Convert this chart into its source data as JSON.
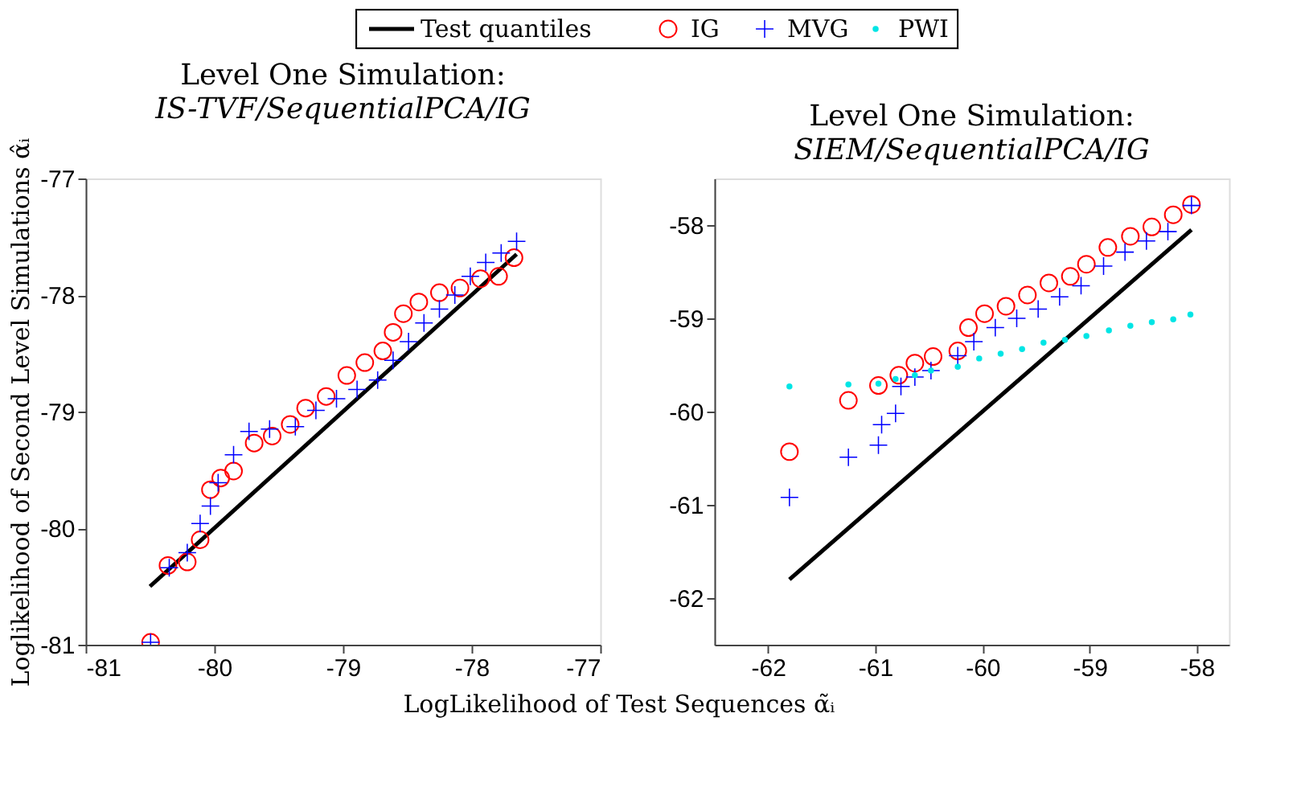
{
  "chart_data": [
    {
      "type": "scatter",
      "title": "Level One Simulation:",
      "subtitle": "IS-TVF/SequentialPCA/IG",
      "xlabel": "LogLikelihood of Test Sequences α̃ᵢ",
      "ylabel": "Loglikelihood of Second Level Simulations α̂ᵢ",
      "xlim": [
        -81,
        -77
      ],
      "ylim": [
        -81,
        -77
      ],
      "xticks": [
        -81,
        -80,
        -79,
        -78,
        -77
      ],
      "yticks": [
        -81,
        -80,
        -79,
        -78,
        -77
      ],
      "grid": false,
      "legend": "top",
      "series": [
        {
          "name": "Test quantiles",
          "type": "line",
          "color": "#000000",
          "x": [
            -80.5,
            -77.65
          ],
          "values": [
            -80.5,
            -77.65
          ]
        },
        {
          "name": "IG",
          "marker": "circle",
          "color": "#ff0000",
          "x": [
            -80.495,
            -80.36,
            -80.21,
            -80.11,
            -80.03,
            -79.95,
            -79.85,
            -79.69,
            -79.55,
            -79.41,
            -79.29,
            -79.13,
            -78.97,
            -78.83,
            -78.69,
            -78.61,
            -78.53,
            -78.41,
            -78.25,
            -78.09,
            -77.93,
            -77.79,
            -77.67
          ],
          "values": [
            -80.98,
            -80.32,
            -80.29,
            -80.1,
            -79.67,
            -79.57,
            -79.51,
            -79.27,
            -79.21,
            -79.11,
            -78.97,
            -78.87,
            -78.69,
            -78.58,
            -78.48,
            -78.32,
            -78.16,
            -78.06,
            -77.98,
            -77.94,
            -77.86,
            -77.84,
            -77.68
          ]
        },
        {
          "name": "MVG",
          "marker": "cross",
          "color": "#0000ff",
          "x": [
            -80.495,
            -80.35,
            -80.21,
            -80.11,
            -80.03,
            -79.97,
            -79.85,
            -79.73,
            -79.57,
            -79.37,
            -79.21,
            -79.05,
            -78.89,
            -78.73,
            -78.61,
            -78.49,
            -78.37,
            -78.25,
            -78.13,
            -78.01,
            -77.89,
            -77.77,
            -77.65
          ],
          "values": [
            -80.98,
            -80.34,
            -80.21,
            -79.96,
            -79.81,
            -79.61,
            -79.37,
            -79.17,
            -79.15,
            -79.13,
            -78.99,
            -78.89,
            -78.81,
            -78.73,
            -78.56,
            -78.4,
            -78.24,
            -78.12,
            -78.0,
            -77.84,
            -77.72,
            -77.64,
            -77.54
          ]
        }
      ]
    },
    {
      "type": "scatter",
      "title": "Level One Simulation:",
      "subtitle": "SIEM/SequentialPCA/IG",
      "xlim": [
        -62.5,
        -57.7
      ],
      "ylim": [
        -62.5,
        -57.5
      ],
      "xticks": [
        -62,
        -61,
        -60,
        -59,
        -58
      ],
      "yticks": [
        -62,
        -61,
        -60,
        -59,
        -58
      ],
      "grid": false,
      "legend": "top",
      "series": [
        {
          "name": "Test quantiles",
          "type": "line",
          "color": "#000000",
          "x": [
            -61.8,
            -58.05
          ],
          "values": [
            -61.8,
            -58.05
          ]
        },
        {
          "name": "IG",
          "marker": "circle",
          "color": "#ff0000",
          "x": [
            -61.8,
            -61.25,
            -60.97,
            -60.78,
            -60.63,
            -60.46,
            -60.23,
            -60.13,
            -59.98,
            -59.78,
            -59.58,
            -59.38,
            -59.18,
            -59.03,
            -58.83,
            -58.62,
            -58.42,
            -58.22,
            -58.05
          ],
          "values": [
            -60.43,
            -59.88,
            -59.72,
            -59.61,
            -59.48,
            -59.41,
            -59.35,
            -59.1,
            -58.95,
            -58.87,
            -58.75,
            -58.62,
            -58.55,
            -58.42,
            -58.24,
            -58.12,
            -58.02,
            -57.89,
            -57.78
          ]
        },
        {
          "name": "MVG",
          "marker": "cross",
          "color": "#0000ff",
          "x": [
            -61.8,
            -61.25,
            -60.97,
            -60.94,
            -60.81,
            -60.76,
            -60.63,
            -60.48,
            -60.23,
            -60.08,
            -59.88,
            -59.68,
            -59.48,
            -59.28,
            -59.08,
            -58.87,
            -58.67,
            -58.47,
            -58.27,
            -58.05
          ],
          "values": [
            -60.92,
            -60.49,
            -60.36,
            -60.14,
            -60.02,
            -59.73,
            -59.63,
            -59.56,
            -59.4,
            -59.25,
            -59.1,
            -59.0,
            -58.9,
            -58.77,
            -58.65,
            -58.44,
            -58.29,
            -58.17,
            -58.07,
            -57.79
          ]
        },
        {
          "name": "PWI",
          "marker": "point",
          "color": "#00e5e5",
          "x": [
            -61.8,
            -61.25,
            -60.97,
            -60.81,
            -60.63,
            -60.48,
            -60.23,
            -60.03,
            -59.83,
            -59.63,
            -59.43,
            -59.23,
            -59.03,
            -58.82,
            -58.62,
            -58.42,
            -58.22,
            -58.06
          ],
          "values": [
            -59.73,
            -59.71,
            -59.7,
            -59.65,
            -59.61,
            -59.56,
            -59.52,
            -59.43,
            -59.38,
            -59.33,
            -59.26,
            -59.23,
            -59.19,
            -59.13,
            -59.08,
            -59.04,
            -59.01,
            -58.96
          ]
        }
      ]
    }
  ]
}
